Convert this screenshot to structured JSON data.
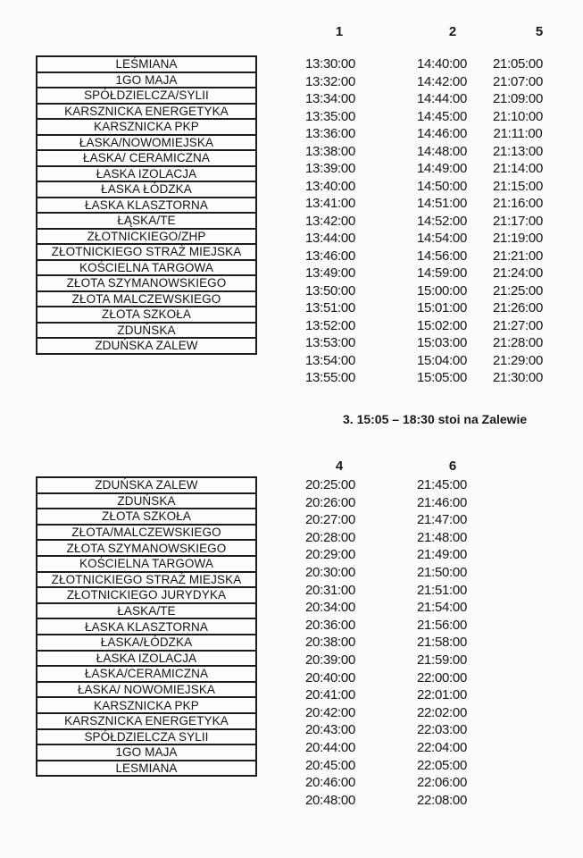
{
  "page": {
    "background": "#fcfcfb",
    "text_color": "#161616",
    "border_color": "#1c1c1c"
  },
  "note": "3. 15:05 – 18:30 stoi na Zalewie",
  "table1": {
    "columns": [
      "1",
      "2",
      "5"
    ],
    "rows": [
      {
        "stop": "LEŚMIANA",
        "times": [
          "13:30:00",
          "14:40:00",
          "21:05:00"
        ]
      },
      {
        "stop": "1GO MAJA",
        "times": [
          "13:32:00",
          "14:42:00",
          "21:07:00"
        ]
      },
      {
        "stop": "SPÓŁDZIELCZA/SYLII",
        "times": [
          "13:34:00",
          "14:44:00",
          "21:09:00"
        ]
      },
      {
        "stop": "KARSZNICKA ENERGETYKA",
        "times": [
          "13:35:00",
          "14:45:00",
          "21:10:00"
        ]
      },
      {
        "stop": "KARSZNICKA PKP",
        "times": [
          "13:36:00",
          "14:46:00",
          "21:11:00"
        ]
      },
      {
        "stop": "ŁASKA/NOWOMIEJSKA",
        "times": [
          "13:38:00",
          "14:48:00",
          "21:13:00"
        ]
      },
      {
        "stop": "ŁASKA/ CERAMICZNA",
        "times": [
          "13:39:00",
          "14:49:00",
          "21:14:00"
        ]
      },
      {
        "stop": "ŁASKA IZOLACJA",
        "times": [
          "13:40:00",
          "14:50:00",
          "21:15:00"
        ]
      },
      {
        "stop": "ŁASKA ŁÓDZKA",
        "times": [
          "13:41:00",
          "14:51:00",
          "21:16:00"
        ]
      },
      {
        "stop": "ŁASKA KLASZTORNA",
        "times": [
          "13:42:00",
          "14:52:00",
          "21:17:00"
        ]
      },
      {
        "stop": "ŁĄSKA/TE",
        "times": [
          "13:44:00",
          "14:54:00",
          "21:19:00"
        ]
      },
      {
        "stop": "ZŁOTNICKIEGO/ZHP",
        "times": [
          "13:46:00",
          "14:56:00",
          "21:21:00"
        ]
      },
      {
        "stop": "ZŁOTNICKIEGO STRAŻ MIEJSKA",
        "times": [
          "13:49:00",
          "14:59:00",
          "21:24:00"
        ]
      },
      {
        "stop": "KOŚCIELNA TARGOWA",
        "times": [
          "13:50:00",
          "15:00:00",
          "21:25:00"
        ]
      },
      {
        "stop": "ZŁOTA SZYMANOWSKIEGO",
        "times": [
          "13:51:00",
          "15:01:00",
          "21:26:00"
        ]
      },
      {
        "stop": "ZŁOTA MALCZEWSKIEGO",
        "times": [
          "13:52:00",
          "15:02:00",
          "21:27:00"
        ]
      },
      {
        "stop": "ZŁOTA SZKOŁA",
        "times": [
          "13:53:00",
          "15:03:00",
          "21:28:00"
        ]
      },
      {
        "stop": "ZDUŃSKA",
        "times": [
          "13:54:00",
          "15:04:00",
          "21:29:00"
        ]
      },
      {
        "stop": "ZDUŃSKA ZALEW",
        "times": [
          "13:55:00",
          "15:05:00",
          "21:30:00"
        ]
      }
    ]
  },
  "table2": {
    "columns": [
      "4",
      "6"
    ],
    "rows": [
      {
        "stop": "ZDUŃSKA ZALEW",
        "times": [
          "20:25:00",
          "21:45:00"
        ]
      },
      {
        "stop": "ZDUŃSKA",
        "times": [
          "20:26:00",
          "21:46:00"
        ]
      },
      {
        "stop": "ZŁOTA SZKOŁA",
        "times": [
          "20:27:00",
          "21:47:00"
        ]
      },
      {
        "stop": "ZŁOTA/MALCZEWSKIEGO",
        "times": [
          "20:28:00",
          "21:48:00"
        ]
      },
      {
        "stop": "ZŁOTA SZYMANOWSKIEGO",
        "times": [
          "20:29:00",
          "21:49:00"
        ]
      },
      {
        "stop": "KOŚCIELNA TARGOWA",
        "times": [
          "20:30:00",
          "21:50:00"
        ]
      },
      {
        "stop": "ZŁOTNICKIEGO STRAŻ MIEJSKA",
        "times": [
          "20:31:00",
          "21:51:00"
        ]
      },
      {
        "stop": "ZŁOTNICKIEGO JURYDYKA",
        "times": [
          "20:34:00",
          "21:54:00"
        ]
      },
      {
        "stop": "ŁASKA/TE",
        "times": [
          "20:36:00",
          "21:56:00"
        ]
      },
      {
        "stop": "ŁASKA KLASZTORNA",
        "times": [
          "20:38:00",
          "21:58:00"
        ]
      },
      {
        "stop": "ŁASKA/ŁÓDZKA",
        "times": [
          "20:39:00",
          "21:59:00"
        ]
      },
      {
        "stop": "ŁASKA IZOLACJA",
        "times": [
          "20:40:00",
          "22:00:00"
        ]
      },
      {
        "stop": "ŁASKA/CERAMICZNA",
        "times": [
          "20:41:00",
          "22:01:00"
        ]
      },
      {
        "stop": "ŁASKA/ NOWOMIEJSKA",
        "times": [
          "20:42:00",
          "22:02:00"
        ]
      },
      {
        "stop": "KARSZNICKA PKP",
        "times": [
          "20:43:00",
          "22:03:00"
        ]
      },
      {
        "stop": "KARSZNICKA ENERGETYKA",
        "times": [
          "20:44:00",
          "22:04:00"
        ]
      },
      {
        "stop": "SPÓŁDZIELCZA SYLII",
        "times": [
          "20:45:00",
          "22:05:00"
        ]
      },
      {
        "stop": "1GO MAJA",
        "times": [
          "20:46:00",
          "22:06:00"
        ]
      },
      {
        "stop": "LESMIANA",
        "times": [
          "20:48:00",
          "22:08:00"
        ]
      }
    ]
  }
}
